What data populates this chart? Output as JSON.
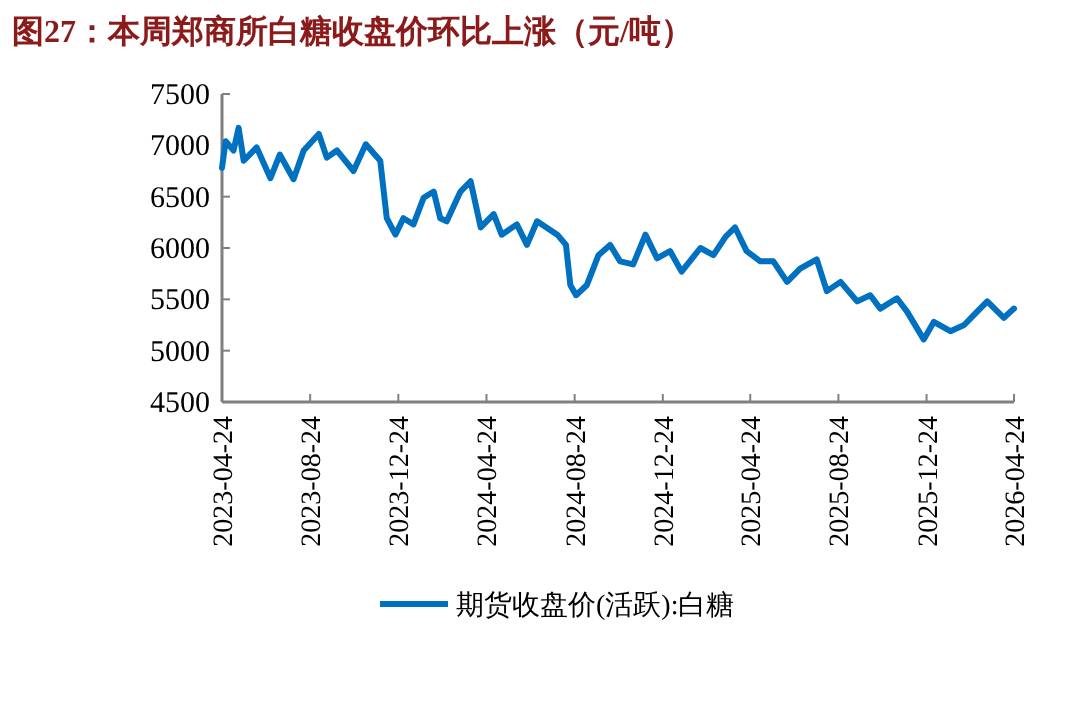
{
  "chart_data": {
    "type": "line",
    "title": "图27：本周郑商所白糖收盘价环比上涨（元/吨）",
    "x": [
      "2023-04-24",
      "2023-04-29",
      "2023-05-10",
      "2023-05-17",
      "2023-05-24",
      "2023-06-11",
      "2023-06-30",
      "2023-07-13",
      "2023-08-01",
      "2023-08-15",
      "2023-09-05",
      "2023-09-16",
      "2023-09-30",
      "2023-10-23",
      "2023-11-09",
      "2023-11-29",
      "2023-12-08",
      "2023-12-20",
      "2023-12-31",
      "2024-01-14",
      "2024-01-28",
      "2024-02-11",
      "2024-02-20",
      "2024-02-29",
      "2024-03-19",
      "2024-04-02",
      "2024-04-16",
      "2024-05-04",
      "2024-05-15",
      "2024-06-05",
      "2024-06-19",
      "2024-07-03",
      "2024-07-31",
      "2024-08-12",
      "2024-08-18",
      "2024-08-26",
      "2024-09-10",
      "2024-09-26",
      "2024-10-12",
      "2024-10-26",
      "2024-11-13",
      "2024-11-30",
      "2024-12-16",
      "2025-01-03",
      "2025-01-19",
      "2025-02-14",
      "2025-03-04",
      "2025-03-21",
      "2025-04-03",
      "2025-04-19",
      "2025-05-08",
      "2025-05-26",
      "2025-06-14",
      "2025-07-02",
      "2025-07-25",
      "2025-08-08",
      "2025-08-27",
      "2025-09-19",
      "2025-10-07",
      "2025-10-21",
      "2025-11-13",
      "2025-11-27",
      "2025-12-20",
      "2026-01-03",
      "2026-01-26",
      "2026-02-14",
      "2026-03-04",
      "2026-03-18",
      "2026-04-10",
      "2026-04-24"
    ],
    "series": [
      {
        "name": "期货收盘价(活跃):白糖",
        "color": "#0070c0",
        "values": [
          6780,
          7040,
          6950,
          7170,
          6850,
          6980,
          6680,
          6910,
          6670,
          6950,
          7110,
          6880,
          6950,
          6750,
          7010,
          6850,
          6290,
          6130,
          6290,
          6230,
          6490,
          6550,
          6290,
          6260,
          6550,
          6650,
          6200,
          6330,
          6130,
          6230,
          6030,
          6260,
          6130,
          6030,
          5640,
          5540,
          5640,
          5930,
          6030,
          5870,
          5840,
          6130,
          5900,
          5970,
          5770,
          6000,
          5930,
          6110,
          6200,
          5970,
          5870,
          5870,
          5670,
          5800,
          5890,
          5580,
          5670,
          5480,
          5540,
          5410,
          5510,
          5380,
          5110,
          5280,
          5190,
          5250,
          5380,
          5480,
          5320,
          5410
        ]
      }
    ],
    "xlim": [
      "2023-04-24",
      "2026-04-24"
    ],
    "xticks": [
      "2023-04-24",
      "2023-08-24",
      "2023-12-24",
      "2024-04-24",
      "2024-08-24",
      "2024-12-24",
      "2025-04-24",
      "2025-08-24",
      "2025-12-24",
      "2026-04-24"
    ],
    "ylim": [
      4500,
      7500
    ],
    "yticks": [
      4500,
      5000,
      5500,
      6000,
      6500,
      7000,
      7500
    ],
    "legend": "bottom",
    "marker": "none"
  }
}
